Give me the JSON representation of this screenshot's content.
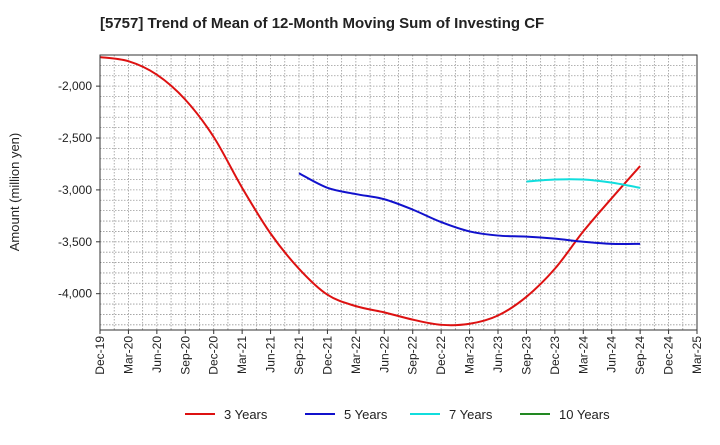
{
  "chart_data": {
    "type": "line",
    "title": "[5757]  Trend of Mean of 12-Month Moving Sum of Investing CF",
    "xlabel": "",
    "ylabel": "Amount (million yen)",
    "ylim": [
      -4350,
      -1700
    ],
    "yticks": [
      -2000,
      -2500,
      -3000,
      -3500,
      -4000
    ],
    "ytick_labels": [
      "-2,000",
      "-2,500",
      "-3,000",
      "-3,500",
      "-4,000"
    ],
    "categories": [
      "Dec-19",
      "Mar-20",
      "Jun-20",
      "Sep-20",
      "Dec-20",
      "Mar-21",
      "Jun-21",
      "Sep-21",
      "Dec-21",
      "Mar-22",
      "Jun-22",
      "Sep-22",
      "Dec-22",
      "Mar-23",
      "Jun-23",
      "Sep-23",
      "Dec-23",
      "Mar-24",
      "Jun-24",
      "Sep-24",
      "Dec-24",
      "Mar-25"
    ],
    "grid": true,
    "legend_position": "bottom",
    "series": [
      {
        "name": "3 Years",
        "color": "#dd1111",
        "values": [
          -1720,
          -1760,
          -1890,
          -2130,
          -2490,
          -2980,
          -3420,
          -3760,
          -4010,
          -4120,
          -4180,
          -4250,
          -4300,
          -4290,
          -4210,
          -4030,
          -3760,
          -3400,
          -3080,
          -2770,
          null,
          null
        ]
      },
      {
        "name": "5 Years",
        "color": "#1111cc",
        "values": [
          null,
          null,
          null,
          null,
          null,
          null,
          null,
          -2840,
          -2980,
          -3040,
          -3090,
          -3190,
          -3310,
          -3400,
          -3440,
          -3450,
          -3470,
          -3500,
          -3520,
          -3520,
          null,
          null
        ]
      },
      {
        "name": "7 Years",
        "color": "#11dddd",
        "values": [
          null,
          null,
          null,
          null,
          null,
          null,
          null,
          null,
          null,
          null,
          null,
          null,
          null,
          null,
          null,
          -2920,
          -2900,
          -2900,
          -2930,
          -2980,
          null,
          null
        ]
      },
      {
        "name": "10 Years",
        "color": "#228822",
        "values": [
          null,
          null,
          null,
          null,
          null,
          null,
          null,
          null,
          null,
          null,
          null,
          null,
          null,
          null,
          null,
          null,
          null,
          null,
          null,
          null,
          null,
          null
        ]
      }
    ]
  }
}
